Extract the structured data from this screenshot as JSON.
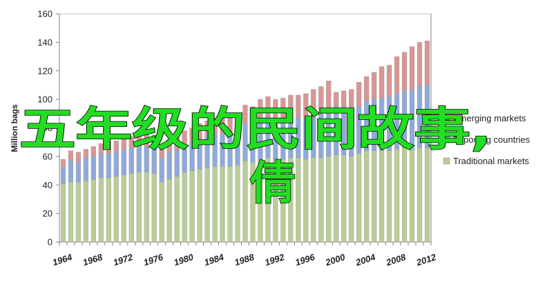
{
  "overlay": {
    "line1": "五年级的民间故事,",
    "line2": "倩"
  },
  "colors": {
    "traditional": "#b9cd96",
    "exporting": "#8eaadb",
    "emerging": "#d99694",
    "plot_border": "#7f7f7f",
    "grid": "#bfbfbf",
    "overlay_text": "#22dd22"
  },
  "chart_data": {
    "type": "bar",
    "stacked": true,
    "ylabel": "Million bags",
    "ylim": [
      0,
      160
    ],
    "yticks": [
      0,
      20,
      40,
      60,
      80,
      100,
      120,
      140,
      160
    ],
    "grid": "horizontal-top-only",
    "legend": "right",
    "x": [
      1964,
      1965,
      1966,
      1967,
      1968,
      1969,
      1970,
      1971,
      1972,
      1973,
      1974,
      1975,
      1976,
      1977,
      1978,
      1979,
      1980,
      1981,
      1982,
      1983,
      1984,
      1985,
      1986,
      1987,
      1988,
      1989,
      1990,
      1991,
      1992,
      1993,
      1994,
      1995,
      1996,
      1997,
      1998,
      1999,
      2000,
      2001,
      2002,
      2003,
      2004,
      2005,
      2006,
      2007,
      2008,
      2009,
      2010,
      2011,
      2012
    ],
    "xticks": [
      "1964",
      "1968",
      "1972",
      "1976",
      "1980",
      "1984",
      "1988",
      "1992",
      "1996",
      "2000",
      "2004",
      "2008",
      "2012"
    ],
    "series": [
      {
        "name": "Traditional markets",
        "values": [
          41,
          42,
          42,
          43,
          44,
          45,
          45,
          46,
          47,
          48,
          49,
          49,
          48,
          42,
          44,
          46,
          49,
          50,
          51,
          52,
          53,
          53,
          53,
          54,
          57,
          56,
          58,
          59,
          57,
          58,
          59,
          59,
          58,
          59,
          59,
          60,
          61,
          61,
          60,
          62,
          64,
          64,
          64,
          64,
          65,
          66,
          65,
          66,
          66
        ]
      },
      {
        "name": "Exporting countries",
        "values": [
          11,
          15,
          14,
          16,
          16,
          17,
          17,
          17,
          18,
          18,
          18,
          18,
          18,
          17,
          19,
          19,
          19,
          20,
          21,
          22,
          23,
          23,
          22,
          24,
          26,
          26,
          28,
          29,
          28,
          28,
          28,
          28,
          29,
          30,
          31,
          33,
          34,
          34,
          32,
          33,
          35,
          36,
          37,
          38,
          39,
          40,
          42,
          43,
          44
        ]
      },
      {
        "name": "Emerging markets",
        "values": [
          6,
          7,
          7,
          6,
          7,
          7,
          8,
          8,
          8,
          8,
          8,
          9,
          9,
          8,
          9,
          9,
          10,
          10,
          11,
          11,
          11,
          12,
          12,
          12,
          13,
          13,
          14,
          14,
          15,
          15,
          16,
          16,
          17,
          18,
          19,
          20,
          10,
          11,
          15,
          17,
          17,
          19,
          22,
          22,
          26,
          27,
          30,
          31,
          31
        ]
      }
    ]
  }
}
